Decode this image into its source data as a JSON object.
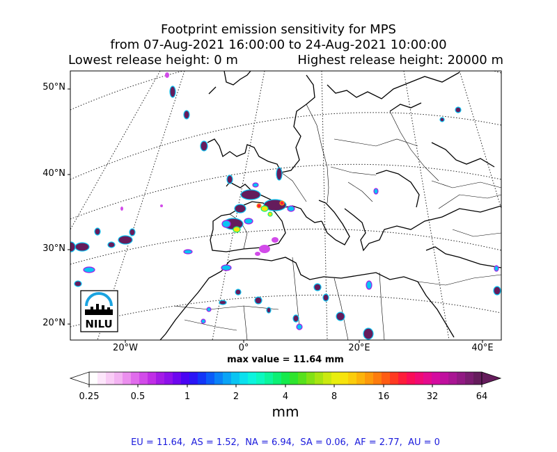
{
  "title": {
    "line1": "Footprint emission sensitivity for MPS",
    "line2": "from 07-Aug-2021 16:00:00 to 24-Aug-2021 10:00:00",
    "lowest": "Lowest release height: 0 m",
    "highest": "Highest release height: 20000 m"
  },
  "map": {
    "lat_labels": [
      "50°N",
      "40°N",
      "30°N",
      "20°N"
    ],
    "lon_labels": [
      "20°W",
      "0°",
      "20°E",
      "40°E"
    ],
    "logo_text": "NILU"
  },
  "max_value": "max value = 11.64 mm",
  "colorbar": {
    "ticks": [
      "0.25",
      "0.5",
      "1",
      "2",
      "4",
      "8",
      "16",
      "32",
      "64"
    ],
    "unit": "mm",
    "colors": [
      "#ffffff",
      "#fde6fb",
      "#f9ccf6",
      "#f3b3f2",
      "#eb8fee",
      "#e06cec",
      "#d24be9",
      "#c02ee6",
      "#a41be6",
      "#8d10ea",
      "#6d06ef",
      "#4a04f3",
      "#2a15f6",
      "#1236f8",
      "#0b5cf9",
      "#0a82f8",
      "#0aa4f6",
      "#0ac4f2",
      "#0be0ee",
      "#0cf4de",
      "#0cf8c0",
      "#0cf59c",
      "#0cf074",
      "#14ea4c",
      "#2ee42e",
      "#57e11c",
      "#82e114",
      "#a8e411",
      "#cbe90f",
      "#e8ee0e",
      "#f7e30d",
      "#fbcd0c",
      "#fcb40b",
      "#fd990b",
      "#fd7c0d",
      "#fe5c13",
      "#fe3a22",
      "#fd1d3a",
      "#f90d57",
      "#f00a74",
      "#e40b8d",
      "#d40c9f",
      "#c00f9e",
      "#a91593",
      "#911983",
      "#7a1c70",
      "#651c5c"
    ]
  },
  "totals": "EU = 11.64,  AS = 1.52,  NA = 6.94,  SA = 0.06,  AF = 2.77,  AU = 0"
}
